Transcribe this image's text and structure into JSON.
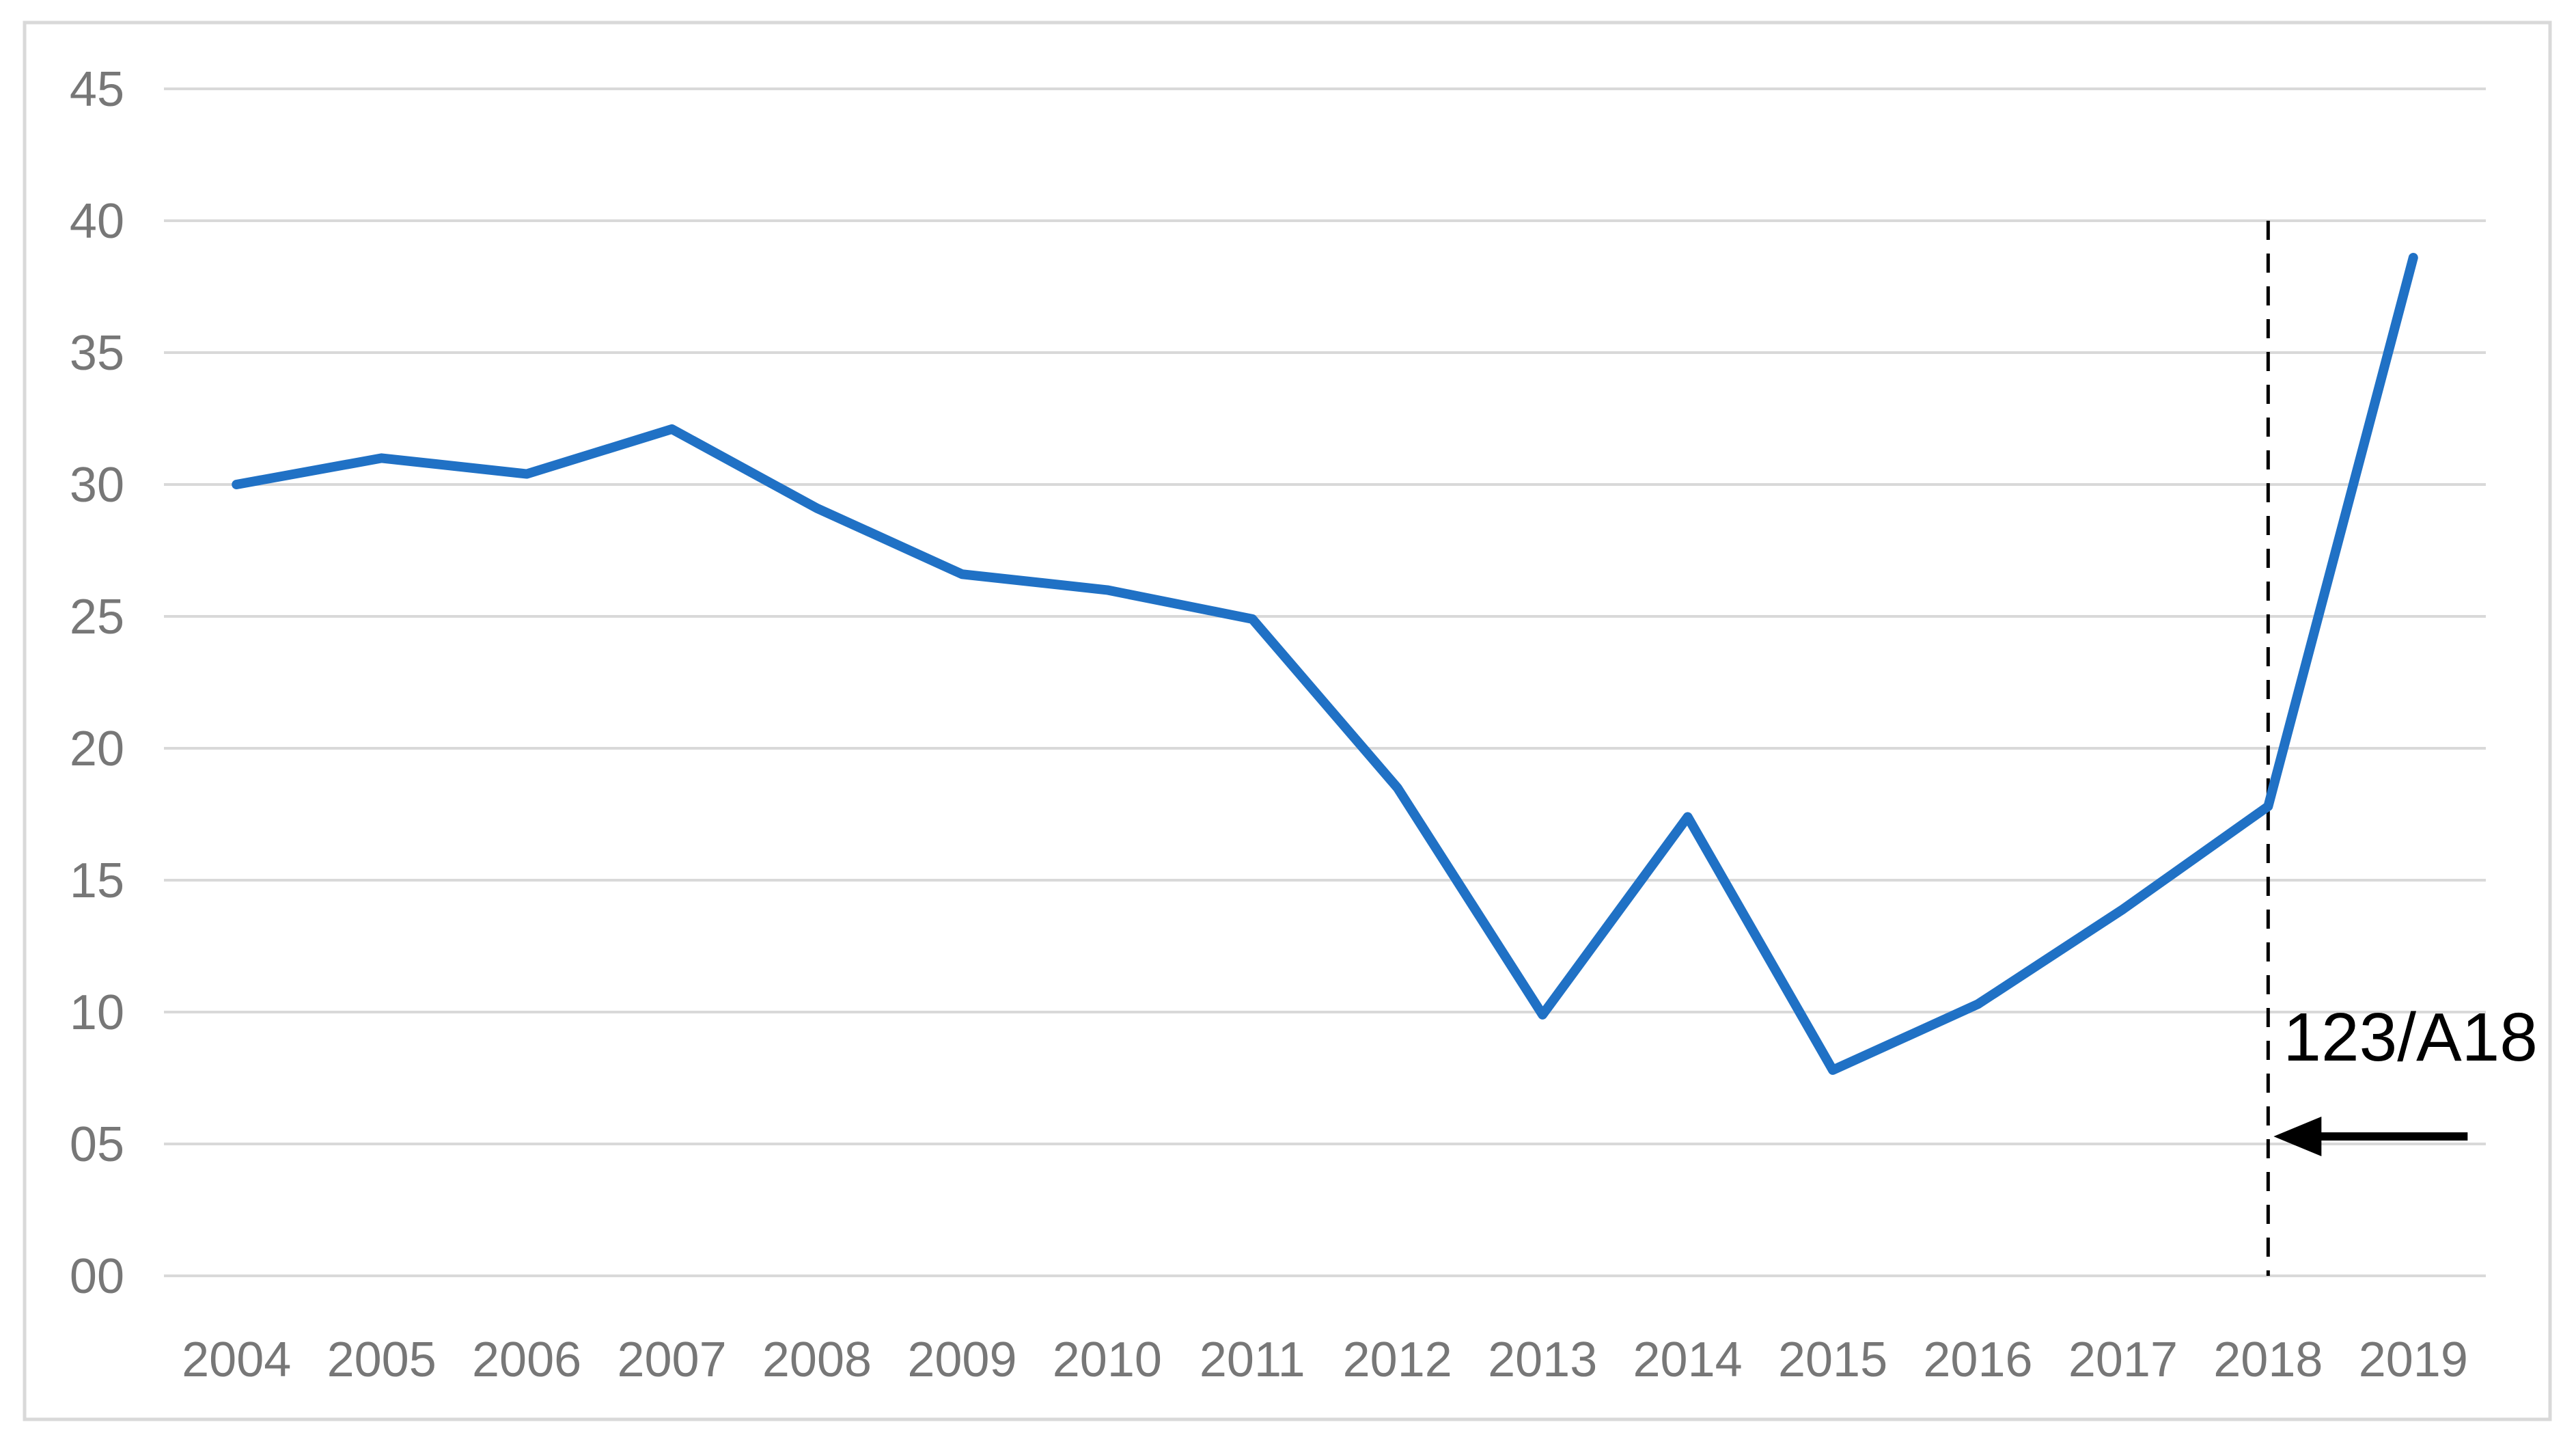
{
  "colors": {
    "background": "#FFFFFF",
    "frame_border": "#D9D9D9",
    "gridline": "#D9D9D9",
    "axis_text": "#777777",
    "series_line": "#2071C5",
    "annotation": "#000000"
  },
  "chart_data": {
    "type": "line",
    "title": "",
    "xlabel": "",
    "ylabel": "",
    "categories": [
      "2004",
      "2005",
      "2006",
      "2007",
      "2008",
      "2009",
      "2010",
      "2011",
      "2012",
      "2013",
      "2014",
      "2015",
      "2016",
      "2017",
      "2018",
      "2019"
    ],
    "series": [
      {
        "name": "",
        "color": "#2071C5",
        "values": [
          30.0,
          31.0,
          30.4,
          32.1,
          29.1,
          26.6,
          26.0,
          24.9,
          18.5,
          9.9,
          17.4,
          7.8,
          10.3,
          13.9,
          17.8,
          38.6
        ]
      }
    ],
    "ylim": [
      0,
      45
    ],
    "y_ticks": {
      "values": [
        45,
        40,
        35,
        30,
        25,
        20,
        15,
        10,
        5,
        0
      ],
      "labels": [
        "45",
        "40",
        "35",
        "30",
        "25",
        "20",
        "15",
        "10",
        "05",
        "00"
      ]
    },
    "grid": "horizontal-only",
    "legend_position": "none",
    "annotation": {
      "label": "123/A18",
      "category": "2018",
      "marker": "dashed-vertical-line",
      "marker_top_value": 40,
      "arrow_direction": "left"
    }
  }
}
